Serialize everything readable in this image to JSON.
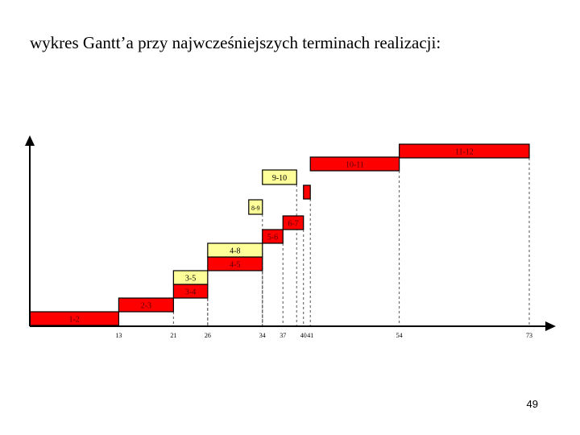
{
  "slide": {
    "title": "wykres Gantt’a przy najwcześniejszych terminach realizacji:",
    "page_number": "49"
  },
  "colors": {
    "critical": "#ff0000",
    "noncritical": "#ffff99",
    "axis": "#000000",
    "guide": "#555555"
  },
  "chart_data": {
    "type": "gantt",
    "title": "",
    "xlabel": "",
    "ylabel": "",
    "xlim": [
      0,
      73
    ],
    "ticks": [
      13,
      21,
      26,
      34,
      37,
      40,
      41,
      54,
      73
    ],
    "tasks": [
      {
        "label": "1-2",
        "start": 0,
        "end": 13,
        "critical": true
      },
      {
        "label": "2-3",
        "start": 13,
        "end": 21,
        "critical": true
      },
      {
        "label": "3-4",
        "start": 21,
        "end": 26,
        "critical": true
      },
      {
        "label": "3-5",
        "start": 21,
        "end": 26,
        "critical": false
      },
      {
        "label": "4-5",
        "start": 26,
        "end": 34,
        "critical": true
      },
      {
        "label": "4-8",
        "start": 26,
        "end": 34,
        "critical": false
      },
      {
        "label": "5-6",
        "start": 34,
        "end": 37,
        "critical": true
      },
      {
        "label": "6-7",
        "start": 37,
        "end": 40,
        "critical": true
      },
      {
        "label": "8-9",
        "start": 32,
        "end": 34,
        "critical": false
      },
      {
        "label": "",
        "start": 40,
        "end": 41,
        "critical": true
      },
      {
        "label": "9-10",
        "start": 34,
        "end": 39,
        "critical": false
      },
      {
        "label": "10-11",
        "start": 41,
        "end": 54,
        "critical": true
      },
      {
        "label": "11-12",
        "start": 54,
        "end": 73,
        "critical": true
      }
    ]
  }
}
